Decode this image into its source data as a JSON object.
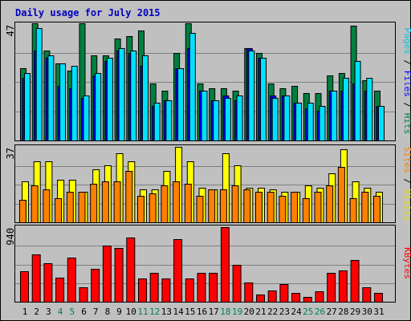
{
  "chart_data": [
    {
      "type": "bar",
      "title": "Daily usage for July 2015",
      "panel": "top",
      "max_label": "47",
      "axis_labels": {
        "pages": "Pages",
        "files": "Files",
        "hits": "Hits",
        "sep": " / "
      },
      "categories": [
        "1",
        "2",
        "3",
        "4",
        "5",
        "6",
        "7",
        "8",
        "9",
        "10",
        "11",
        "12",
        "13",
        "14",
        "15",
        "16",
        "17",
        "18",
        "19",
        "20",
        "21",
        "22",
        "23",
        "24",
        "25",
        "26",
        "27",
        "28",
        "29",
        "30",
        "31"
      ],
      "weekend_days": [
        "4",
        "5",
        "11",
        "12",
        "18",
        "19",
        "25",
        "26"
      ],
      "ylim": [
        0,
        47
      ],
      "series": [
        {
          "name": "Hits",
          "color": "#008040",
          "values": [
            29,
            47,
            36,
            31,
            28,
            47,
            34,
            34,
            41,
            42,
            44,
            23,
            20,
            35,
            47,
            23,
            21,
            21,
            20,
            37,
            35,
            23,
            21,
            22,
            19,
            19,
            26,
            27,
            46,
            24,
            20
          ]
        },
        {
          "name": "Files",
          "color": "#0000ff",
          "values": [
            25,
            36,
            33,
            22,
            21,
            17,
            26,
            32,
            36,
            35,
            30,
            14,
            16,
            29,
            37,
            20,
            16,
            18,
            16,
            37,
            33,
            18,
            18,
            15,
            13,
            12,
            20,
            20,
            23,
            20,
            14
          ]
        },
        {
          "name": "Pages",
          "color": "#00e0ff",
          "values": [
            27,
            45,
            34,
            31,
            30,
            18,
            27,
            33,
            37,
            36,
            34,
            15,
            16,
            29,
            43,
            20,
            16,
            17,
            18,
            36,
            33,
            17,
            18,
            15,
            15,
            14,
            20,
            25,
            32,
            25,
            14
          ]
        }
      ]
    },
    {
      "type": "bar",
      "panel": "middle",
      "max_label": "37",
      "axis_labels": {
        "sites": "Sites",
        "visits": "Visits",
        "sep": " / "
      },
      "categories": [
        "1",
        "2",
        "3",
        "4",
        "5",
        "6",
        "7",
        "8",
        "9",
        "10",
        "11",
        "12",
        "13",
        "14",
        "15",
        "16",
        "17",
        "18",
        "19",
        "20",
        "21",
        "22",
        "23",
        "24",
        "25",
        "26",
        "27",
        "28",
        "29",
        "30",
        "31"
      ],
      "ylim": [
        0,
        37
      ],
      "series": [
        {
          "name": "Visits",
          "color": "#ffff00",
          "values": [
            20,
            30,
            30,
            21,
            21,
            15,
            26,
            28,
            34,
            30,
            16,
            16,
            25,
            37,
            30,
            17,
            16,
            34,
            28,
            17,
            17,
            16,
            15,
            15,
            18,
            17,
            24,
            36,
            20,
            17,
            15
          ]
        },
        {
          "name": "Sites",
          "color": "#ff8000",
          "values": [
            11,
            18,
            16,
            12,
            15,
            15,
            19,
            20,
            20,
            25,
            13,
            14,
            18,
            20,
            19,
            13,
            16,
            16,
            18,
            16,
            15,
            15,
            13,
            15,
            12,
            15,
            18,
            27,
            12,
            15,
            13
          ]
        }
      ]
    },
    {
      "type": "bar",
      "panel": "bottom",
      "max_label": "940",
      "axis_labels": {
        "kbytes": "KBytes"
      },
      "categories": [
        "1",
        "2",
        "3",
        "4",
        "5",
        "6",
        "7",
        "8",
        "9",
        "10",
        "11",
        "12",
        "13",
        "14",
        "15",
        "16",
        "17",
        "18",
        "19",
        "20",
        "21",
        "22",
        "23",
        "24",
        "25",
        "26",
        "27",
        "28",
        "29",
        "30",
        "31"
      ],
      "ylim": [
        0,
        940
      ],
      "series": [
        {
          "name": "KBytes",
          "color": "#ff0000",
          "values": [
            380,
            595,
            490,
            300,
            555,
            180,
            410,
            705,
            680,
            810,
            290,
            360,
            290,
            790,
            290,
            360,
            360,
            940,
            460,
            245,
            90,
            140,
            220,
            110,
            60,
            130,
            360,
            390,
            525,
            180,
            110
          ]
        }
      ]
    }
  ]
}
